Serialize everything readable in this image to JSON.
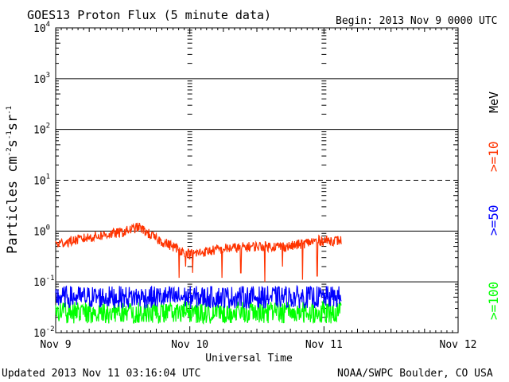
{
  "header": {
    "title": "GOES13 Proton Flux (5 minute data)",
    "begin": "Begin: 2013 Nov 9 0000 UTC"
  },
  "footer": {
    "updated": "Updated 2013 Nov 11 03:16:04 UTC",
    "credit": "NOAA/SWPC Boulder, CO USA"
  },
  "chart_data": {
    "type": "line",
    "title": "GOES13 Proton Flux (5 minute data)",
    "xlabel": "Universal Time",
    "ylabel": "Particles cm-2s-1sr-1",
    "yscale": "log",
    "ylim": [
      0.01,
      10000
    ],
    "xlim": [
      "2013-11-09 00:00",
      "2013-11-12 00:00"
    ],
    "x_ticks": [
      "Nov 9",
      "Nov 10",
      "Nov 11",
      "Nov 12"
    ],
    "y_ticks": [
      "10^-2",
      "10^-1",
      "10^0",
      "10^1",
      "10^2",
      "10^3",
      "10^4"
    ],
    "threshold_line": {
      "value": 10,
      "style": "dashed"
    },
    "grid": true,
    "legend_position": "right",
    "legend_unit": "MeV",
    "data_end": "2013-11-11 03:15",
    "series": [
      {
        "name": ">=10",
        "color": "#ff3300",
        "anchors_x_days": [
          0,
          0.25,
          0.5,
          0.62,
          0.75,
          1.0,
          1.25,
          1.5,
          1.75,
          1.95,
          2.13
        ],
        "anchors_y": [
          0.55,
          0.75,
          0.95,
          1.2,
          0.7,
          0.35,
          0.45,
          0.5,
          0.5,
          0.65,
          0.65
        ],
        "spread_decades": 0.1,
        "dips": [
          {
            "x_days": 0.92,
            "y": 0.12
          },
          {
            "x_days": 0.97,
            "y": 0.2
          },
          {
            "x_days": 1.02,
            "y": 0.15
          },
          {
            "x_days": 1.24,
            "y": 0.12
          },
          {
            "x_days": 1.38,
            "y": 0.15
          },
          {
            "x_days": 1.56,
            "y": 0.1
          },
          {
            "x_days": 1.69,
            "y": 0.2
          },
          {
            "x_days": 1.84,
            "y": 0.11
          },
          {
            "x_days": 1.95,
            "y": 0.13
          }
        ]
      },
      {
        "name": ">=50",
        "color": "#0000ff",
        "anchors_x_days": [
          0,
          0.5,
          1.0,
          1.5,
          2.13
        ],
        "anchors_y": [
          0.05,
          0.05,
          0.05,
          0.05,
          0.05
        ],
        "spread_decades": 0.22,
        "dips": []
      },
      {
        "name": ">=100",
        "color": "#00ff00",
        "anchors_x_days": [
          0,
          0.5,
          1.0,
          1.5,
          2.13
        ],
        "anchors_y": [
          0.025,
          0.025,
          0.025,
          0.025,
          0.025
        ],
        "spread_decades": 0.22,
        "dips": []
      }
    ]
  }
}
